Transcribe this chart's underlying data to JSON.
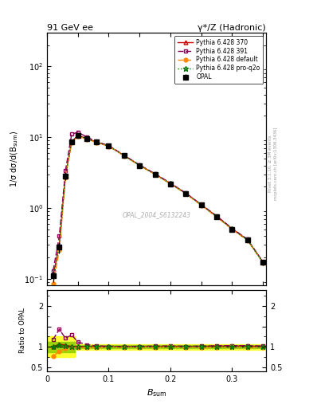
{
  "title_left": "91 GeV ee",
  "title_right": "γ*/Z (Hadronic)",
  "ylabel_main": "1/σ dσ/d(B_ₛᵤₘ)",
  "ylabel_ratio": "Ratio to OPAL",
  "xlabel": "B_ₛᵤₘ",
  "watermark": "OPAL_2004_S6132243",
  "right_label": "Rivet 3.1.10, ≥ 3M events",
  "right_label2": "mcplots.cern.ch [arXiv:1306.3436]",
  "x_data": [
    0.01,
    0.02,
    0.03,
    0.04,
    0.05,
    0.065,
    0.08,
    0.1,
    0.125,
    0.15,
    0.175,
    0.2,
    0.225,
    0.25,
    0.275,
    0.3,
    0.325,
    0.35
  ],
  "opal_y": [
    0.11,
    0.28,
    2.8,
    8.5,
    10.5,
    9.5,
    8.5,
    7.5,
    5.5,
    4.0,
    3.0,
    2.2,
    1.6,
    1.1,
    0.75,
    0.5,
    0.35,
    0.17
  ],
  "opal_yerr": [
    0.02,
    0.05,
    0.3,
    0.5,
    0.5,
    0.4,
    0.35,
    0.3,
    0.22,
    0.15,
    0.12,
    0.09,
    0.07,
    0.05,
    0.04,
    0.025,
    0.02,
    0.015
  ],
  "py370_y": [
    0.11,
    0.3,
    2.9,
    8.6,
    10.6,
    9.55,
    8.55,
    7.52,
    5.52,
    4.02,
    3.02,
    2.22,
    1.61,
    1.11,
    0.76,
    0.51,
    0.355,
    0.172
  ],
  "py391_y": [
    0.13,
    0.4,
    3.4,
    11.0,
    11.8,
    10.0,
    8.7,
    7.6,
    5.55,
    4.05,
    3.05,
    2.25,
    1.62,
    1.12,
    0.77,
    0.515,
    0.36,
    0.173
  ],
  "pydef_y": [
    0.085,
    0.25,
    2.7,
    8.3,
    10.3,
    9.4,
    8.4,
    7.45,
    5.45,
    3.97,
    2.98,
    2.19,
    1.59,
    1.09,
    0.745,
    0.498,
    0.348,
    0.168
  ],
  "pyproq2o_y": [
    0.11,
    0.29,
    2.85,
    8.55,
    10.55,
    9.52,
    8.52,
    7.5,
    5.5,
    4.0,
    3.0,
    2.21,
    1.605,
    1.105,
    0.755,
    0.505,
    0.352,
    0.17
  ],
  "ratio_py370": [
    1.0,
    1.07,
    1.04,
    1.01,
    1.01,
    1.005,
    1.006,
    1.003,
    1.004,
    1.005,
    1.007,
    1.009,
    1.006,
    1.009,
    1.013,
    1.02,
    1.014,
    1.012
  ],
  "ratio_py391": [
    1.18,
    1.43,
    1.21,
    1.29,
    1.12,
    1.05,
    1.024,
    1.013,
    1.009,
    1.013,
    1.017,
    1.023,
    1.013,
    1.018,
    1.027,
    1.03,
    1.029,
    1.018
  ],
  "ratio_pydef": [
    0.77,
    0.89,
    0.96,
    0.98,
    0.981,
    0.989,
    0.988,
    0.993,
    0.991,
    0.993,
    0.993,
    0.995,
    0.994,
    0.991,
    0.993,
    0.996,
    0.994,
    0.988
  ],
  "ratio_pyproq2o": [
    1.0,
    1.04,
    1.018,
    1.006,
    1.005,
    1.002,
    1.002,
    1.0,
    1.0,
    1.0,
    1.0,
    1.0045,
    1.003,
    1.004,
    1.007,
    1.01,
    1.006,
    1.0
  ],
  "color_opal": "#000000",
  "color_py370": "#cc0000",
  "color_py391": "#880055",
  "color_pydef": "#ff8800",
  "color_pyproq2o": "#007700",
  "xlim": [
    0.0,
    0.355
  ],
  "ylim_main": [
    0.08,
    300
  ],
  "ylim_ratio": [
    0.4,
    2.4
  ]
}
